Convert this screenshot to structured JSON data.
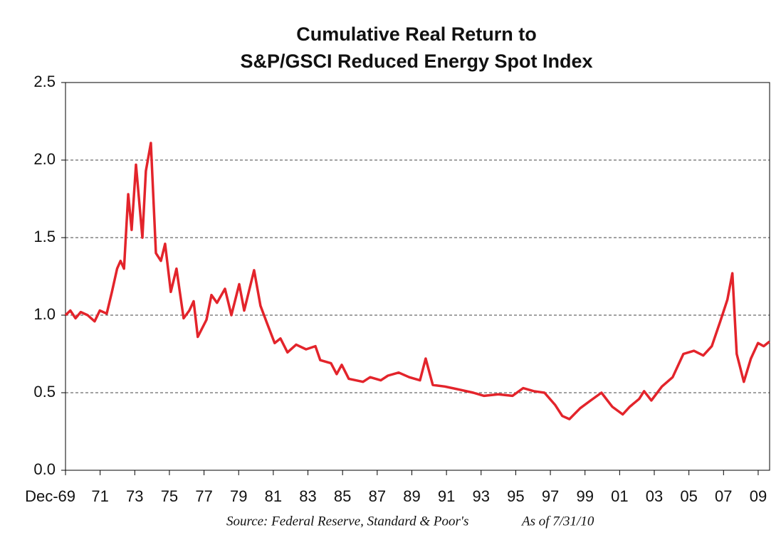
{
  "chart_data": {
    "type": "line",
    "title": [
      "Cumulative Real Return to",
      "S&P/GSCI Reduced Energy Spot Index"
    ],
    "source": "Source: Federal Reserve, Standard & Poor's",
    "as_of": "As of 7/31/10",
    "xlim": [
      1969.92,
      2010.58
    ],
    "xticks": [
      {
        "value": 1969.92,
        "label": "Dec-69"
      },
      {
        "value": 1971.92,
        "label": "71"
      },
      {
        "value": 1973.92,
        "label": "73"
      },
      {
        "value": 1975.92,
        "label": "75"
      },
      {
        "value": 1977.92,
        "label": "77"
      },
      {
        "value": 1979.92,
        "label": "79"
      },
      {
        "value": 1981.92,
        "label": "81"
      },
      {
        "value": 1983.92,
        "label": "83"
      },
      {
        "value": 1985.92,
        "label": "85"
      },
      {
        "value": 1987.92,
        "label": "87"
      },
      {
        "value": 1989.92,
        "label": "89"
      },
      {
        "value": 1991.92,
        "label": "91"
      },
      {
        "value": 1993.92,
        "label": "93"
      },
      {
        "value": 1995.92,
        "label": "95"
      },
      {
        "value": 1997.92,
        "label": "97"
      },
      {
        "value": 1999.92,
        "label": "99"
      },
      {
        "value": 2001.92,
        "label": "01"
      },
      {
        "value": 2003.92,
        "label": "03"
      },
      {
        "value": 2005.92,
        "label": "05"
      },
      {
        "value": 2007.92,
        "label": "07"
      },
      {
        "value": 2009.92,
        "label": "09"
      }
    ],
    "ylim": [
      0,
      2.5
    ],
    "yticks": [
      {
        "value": 0,
        "label": "0.0"
      },
      0.5,
      {
        "value": 1,
        "label": "1.0"
      },
      1.5,
      {
        "value": 2,
        "label": "2.0"
      },
      2.5
    ],
    "grid": true,
    "color": "#e3242b",
    "x": [
      1969.92,
      1970.2,
      1970.5,
      1970.8,
      1971.2,
      1971.6,
      1971.9,
      1972.3,
      1972.6,
      1972.9,
      1973.1,
      1973.3,
      1973.54,
      1973.74,
      1973.99,
      1974.36,
      1974.56,
      1974.85,
      1975.14,
      1975.43,
      1975.67,
      1976.0,
      1976.33,
      1976.74,
      1977.07,
      1977.32,
      1977.56,
      1978.06,
      1978.35,
      1978.67,
      1979.13,
      1979.5,
      1979.95,
      1980.24,
      1980.81,
      1981.18,
      1981.55,
      1982.0,
      1982.33,
      1982.74,
      1983.24,
      1983.81,
      1984.35,
      1984.63,
      1985.25,
      1985.58,
      1985.87,
      1986.28,
      1987.1,
      1987.51,
      1988.13,
      1988.54,
      1989.16,
      1989.77,
      1990.39,
      1990.72,
      1991.13,
      1991.83,
      1992.65,
      1993.47,
      1994.09,
      1994.91,
      1995.73,
      1996.35,
      1996.96,
      1997.58,
      1998.2,
      1998.61,
      1999.02,
      1999.64,
      2000.25,
      2000.87,
      2001.49,
      2002.1,
      2002.51,
      2003.05,
      2003.33,
      2003.75,
      2004.36,
      2004.98,
      2005.6,
      2006.21,
      2006.75,
      2007.24,
      2007.73,
      2008.14,
      2008.43,
      2008.68,
      2009.09,
      2009.5,
      2009.91,
      2010.24,
      2010.57
    ],
    "values": [
      1.0,
      1.03,
      0.98,
      1.02,
      1.0,
      0.96,
      1.03,
      1.01,
      1.15,
      1.3,
      1.35,
      1.3,
      1.78,
      1.55,
      1.97,
      1.5,
      1.93,
      2.11,
      1.4,
      1.35,
      1.46,
      1.15,
      1.3,
      0.98,
      1.03,
      1.09,
      0.86,
      0.97,
      1.13,
      1.08,
      1.17,
      1.0,
      1.2,
      1.03,
      1.29,
      1.06,
      0.95,
      0.82,
      0.85,
      0.76,
      0.81,
      0.78,
      0.8,
      0.71,
      0.69,
      0.62,
      0.68,
      0.59,
      0.57,
      0.6,
      0.58,
      0.61,
      0.63,
      0.6,
      0.58,
      0.72,
      0.55,
      0.54,
      0.52,
      0.5,
      0.48,
      0.49,
      0.48,
      0.53,
      0.51,
      0.5,
      0.42,
      0.35,
      0.33,
      0.4,
      0.45,
      0.5,
      0.41,
      0.36,
      0.41,
      0.46,
      0.51,
      0.45,
      0.54,
      0.6,
      0.75,
      0.77,
      0.74,
      0.8,
      0.96,
      1.1,
      1.27,
      0.75,
      0.57,
      0.72,
      0.82,
      0.8,
      0.83
    ]
  }
}
